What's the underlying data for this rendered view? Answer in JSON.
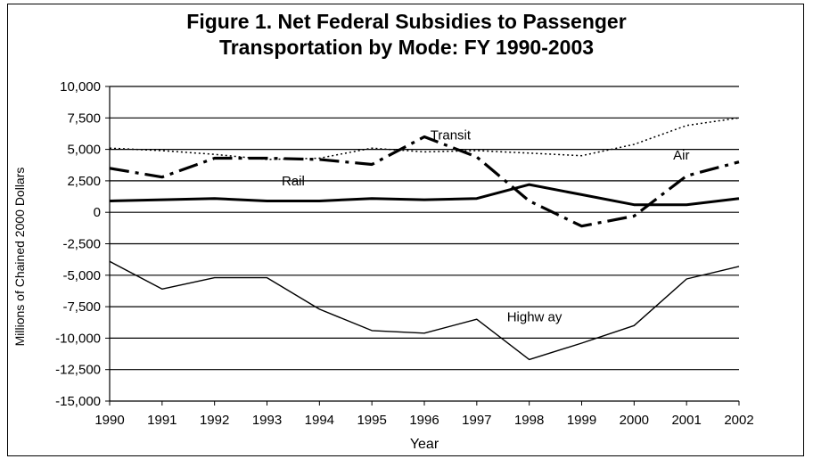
{
  "chart_data": {
    "type": "line",
    "title_lines": [
      "Figure 1. Net Federal Subsidies to Passenger",
      "Transportation by Mode: FY 1990-2003"
    ],
    "xlabel": "Year",
    "ylabel": "Millions of Chained 2000 Dollars",
    "ylim": [
      -15000,
      10000
    ],
    "yticks": [
      10000,
      7500,
      5000,
      2500,
      0,
      -2500,
      -5000,
      -7500,
      -10000,
      -12500,
      -15000
    ],
    "ytick_labels": [
      "10,000",
      "7,500",
      "5,000",
      "2,500",
      "0",
      "-2,500",
      "-5,000",
      "-7,500",
      "-10,000",
      "-12,500",
      "-15,000"
    ],
    "x": [
      1990,
      1991,
      1992,
      1993,
      1994,
      1995,
      1996,
      1997,
      1998,
      1999,
      2000,
      2001,
      2002
    ],
    "xtick_labels": [
      "1990",
      "1991",
      "1992",
      "1993",
      "1994",
      "1995",
      "1996",
      "1997",
      "1998",
      "1999",
      "2000",
      "2001",
      "2002"
    ],
    "grid": "horizontal",
    "legend": "none",
    "series": [
      {
        "name": "Transit",
        "style": "dotted",
        "values": [
          5100,
          4900,
          4600,
          4200,
          4300,
          5100,
          4800,
          4900,
          4700,
          4500,
          5400,
          6900,
          7500
        ]
      },
      {
        "name": "Air",
        "style": "dash-dot",
        "values": [
          3500,
          2800,
          4300,
          4300,
          4200,
          3800,
          6000,
          4400,
          900,
          -1100,
          -300,
          2900,
          4000
        ]
      },
      {
        "name": "Rail",
        "style": "solid-thick",
        "values": [
          900,
          1000,
          1100,
          900,
          900,
          1100,
          1000,
          1100,
          2200,
          1400,
          600,
          600,
          1100
        ]
      },
      {
        "name": "Highw ay",
        "style": "solid-thin",
        "values": [
          -3900,
          -6100,
          -5200,
          -5200,
          -7700,
          -9400,
          -9600,
          -8500,
          -11700,
          -10400,
          -9000,
          -5300,
          -4300
        ]
      }
    ],
    "annotations": [
      {
        "text": "Transit",
        "series": "Transit"
      },
      {
        "text": "Air",
        "series": "Air"
      },
      {
        "text": "Rail",
        "series": "Rail"
      },
      {
        "text": "Highw ay",
        "series": "Highw ay"
      }
    ]
  }
}
